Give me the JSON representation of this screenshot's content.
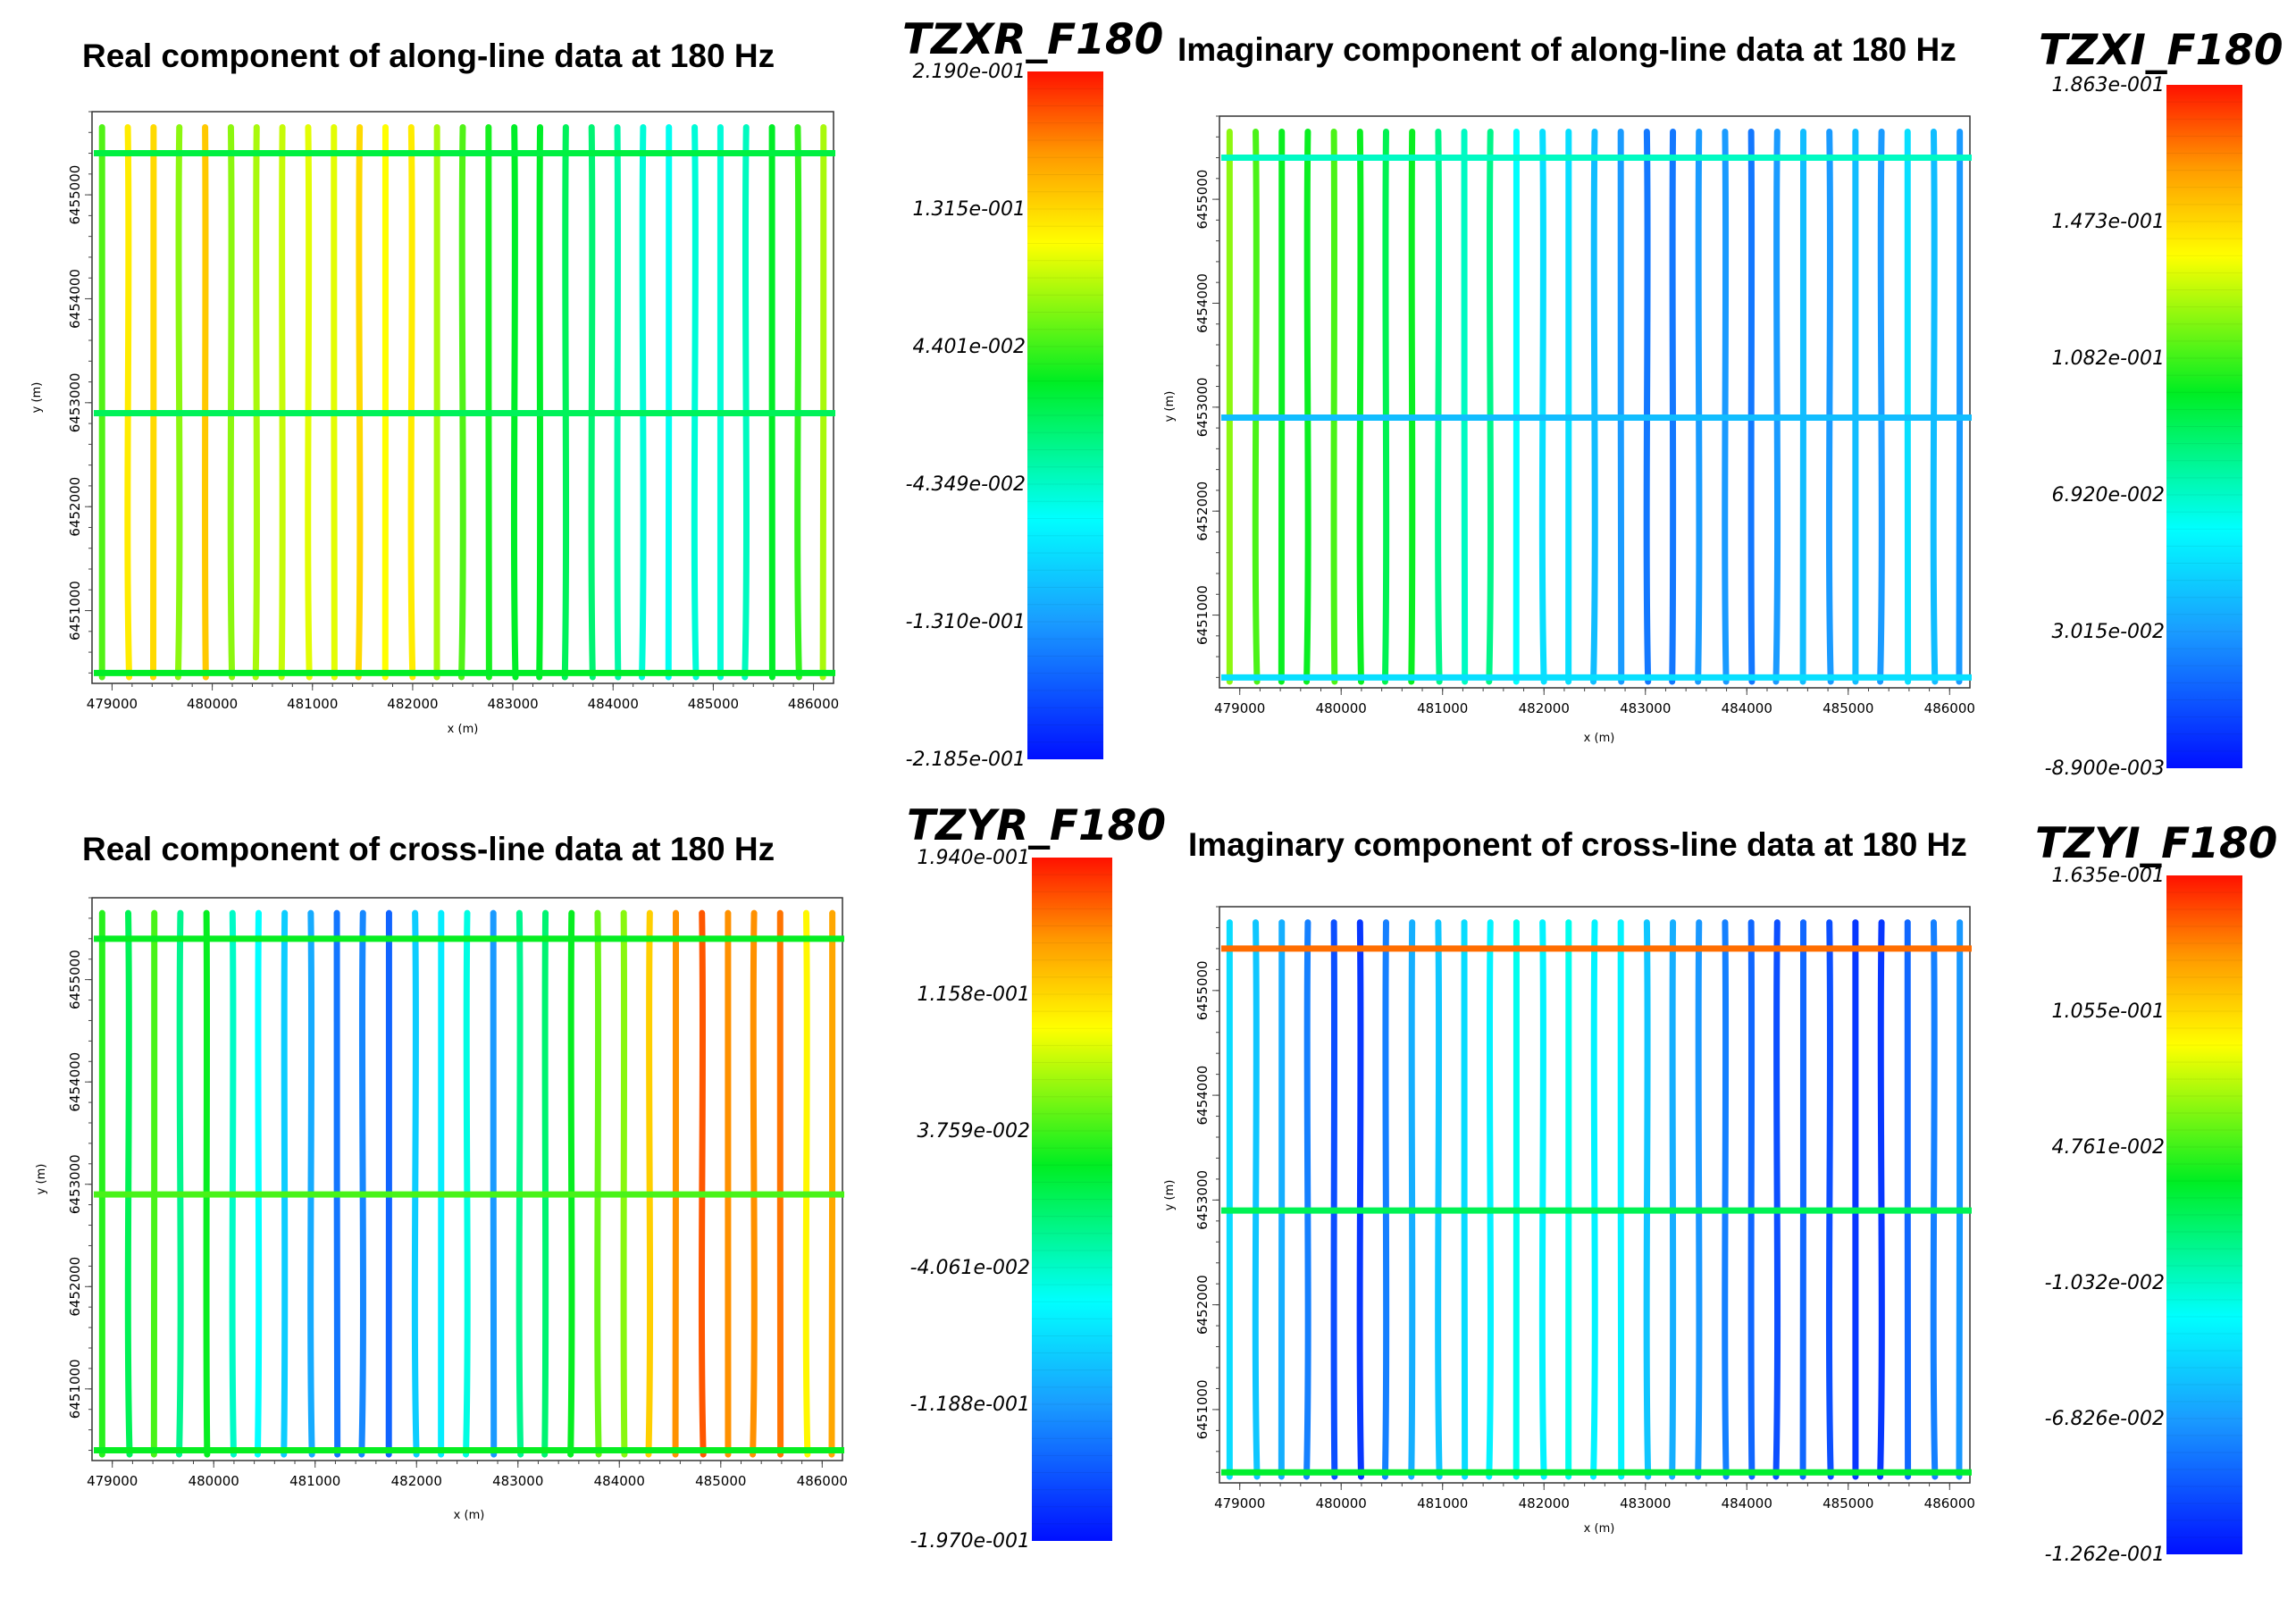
{
  "chart_data": [
    {
      "type": "heatmap",
      "id": "p1",
      "title": "Real component of along-line data at 180 Hz",
      "colorbar_title": "TZXR_F180",
      "colorbar_labels": [
        "2.190e-001",
        "1.315e-001",
        "4.401e-002",
        "-4.349e-002",
        "-1.310e-001",
        "-2.185e-001"
      ],
      "vmin": -0.2185,
      "vmax": 0.219,
      "xlabel": "x (m)",
      "ylabel": "y (m)",
      "x_ticks": [
        "479000",
        "480000",
        "481000",
        "482000",
        "483000",
        "484000",
        "485000",
        "486000"
      ],
      "y_ticks": [
        "6451000",
        "6452000",
        "6453000",
        "6454000",
        "6455000"
      ],
      "xlim": [
        478800,
        486200
      ],
      "ylim": [
        6450300,
        6455800
      ],
      "line_count": 29,
      "tie_lines_y": [
        6450400,
        6452900,
        6455400
      ],
      "line_values": [
        0.05,
        0.12,
        0.13,
        0.07,
        0.14,
        0.07,
        0.08,
        0.09,
        0.1,
        0.1,
        0.13,
        0.11,
        0.12,
        0.08,
        0.05,
        0.03,
        0.02,
        0.02,
        0.0,
        -0.01,
        -0.03,
        -0.05,
        -0.06,
        -0.05,
        -0.05,
        -0.04,
        0.02,
        0.04,
        0.08
      ],
      "tie_values": [
        0.02,
        0.0,
        0.01
      ]
    },
    {
      "type": "heatmap",
      "id": "p2",
      "title": "Imaginary component of along-line data at 180 Hz",
      "colorbar_title": "TZXI_F180",
      "colorbar_labels": [
        "1.863e-001",
        "1.473e-001",
        "1.082e-001",
        "6.920e-002",
        "3.015e-002",
        "-8.900e-003"
      ],
      "vmin": -0.0089,
      "vmax": 0.1863,
      "xlabel": "x (m)",
      "ylabel": "y (m)",
      "x_ticks": [
        "479000",
        "480000",
        "481000",
        "482000",
        "483000",
        "484000",
        "485000",
        "486000"
      ],
      "y_ticks": [
        "6451000",
        "6452000",
        "6453000",
        "6454000",
        "6455000"
      ],
      "xlim": [
        478800,
        486200
      ],
      "ylim": [
        6450300,
        6455800
      ],
      "line_count": 29,
      "tie_lines_y": [
        6450400,
        6452900,
        6455400
      ],
      "line_values": [
        0.12,
        0.11,
        0.1,
        0.1,
        0.11,
        0.1,
        0.09,
        0.1,
        0.08,
        0.07,
        0.08,
        0.06,
        0.05,
        0.05,
        0.04,
        0.03,
        0.02,
        0.02,
        0.03,
        0.03,
        0.02,
        0.03,
        0.04,
        0.03,
        0.04,
        0.03,
        0.05,
        0.04,
        0.03
      ],
      "tie_values": [
        0.05,
        0.04,
        0.07
      ]
    },
    {
      "type": "heatmap",
      "id": "p3",
      "title": "Real component of cross-line data at 180 Hz",
      "colorbar_title": "TZYR_F180",
      "colorbar_labels": [
        "1.940e-001",
        "1.158e-001",
        "3.759e-002",
        "-4.061e-002",
        "-1.188e-001",
        "-1.970e-001"
      ],
      "vmin": -0.197,
      "vmax": 0.194,
      "xlabel": "x (m)",
      "ylabel": "y (m)",
      "x_ticks": [
        "479000",
        "480000",
        "481000",
        "482000",
        "483000",
        "484000",
        "485000",
        "486000"
      ],
      "y_ticks": [
        "6451000",
        "6452000",
        "6453000",
        "6454000",
        "6455000"
      ],
      "xlim": [
        478800,
        486200
      ],
      "ylim": [
        6450300,
        6455800
      ],
      "line_count": 29,
      "tie_lines_y": [
        6450400,
        6452900,
        6455400
      ],
      "line_values": [
        0.03,
        0.0,
        0.04,
        -0.02,
        0.02,
        -0.04,
        -0.06,
        -0.09,
        -0.11,
        -0.14,
        -0.13,
        -0.15,
        -0.09,
        -0.07,
        -0.05,
        -0.12,
        -0.02,
        -0.01,
        0.02,
        0.05,
        0.06,
        0.12,
        0.15,
        0.17,
        0.15,
        0.15,
        0.16,
        0.1,
        0.14
      ],
      "tie_values": [
        0.02,
        0.04,
        0.02
      ]
    },
    {
      "type": "heatmap",
      "id": "p4",
      "title": "Imaginary component of cross-line data at 180 Hz",
      "colorbar_title": "TZYI_F180",
      "colorbar_labels": [
        "1.635e-001",
        "1.055e-001",
        "4.761e-002",
        "-1.032e-002",
        "-6.826e-002",
        "-1.262e-001"
      ],
      "vmin": -0.1262,
      "vmax": 0.1635,
      "xlabel": "x (m)",
      "ylabel": "y (m)",
      "x_ticks": [
        "479000",
        "480000",
        "481000",
        "482000",
        "483000",
        "484000",
        "485000",
        "486000"
      ],
      "y_ticks": [
        "6451000",
        "6452000",
        "6453000",
        "6454000",
        "6455000"
      ],
      "xlim": [
        478800,
        486200
      ],
      "ylim": [
        6450300,
        6455800
      ],
      "line_count": 29,
      "tie_lines_y": [
        6450400,
        6452900,
        6455400
      ],
      "line_values": [
        -0.04,
        -0.05,
        -0.06,
        -0.08,
        -0.1,
        -0.11,
        -0.08,
        -0.06,
        -0.05,
        -0.04,
        -0.03,
        -0.02,
        -0.03,
        -0.02,
        -0.03,
        -0.03,
        -0.05,
        -0.06,
        -0.07,
        -0.08,
        -0.09,
        -0.1,
        -0.09,
        -0.1,
        -0.11,
        -0.11,
        -0.09,
        -0.08,
        -0.07
      ],
      "tie_values": [
        0.03,
        0.02,
        0.14
      ]
    }
  ]
}
